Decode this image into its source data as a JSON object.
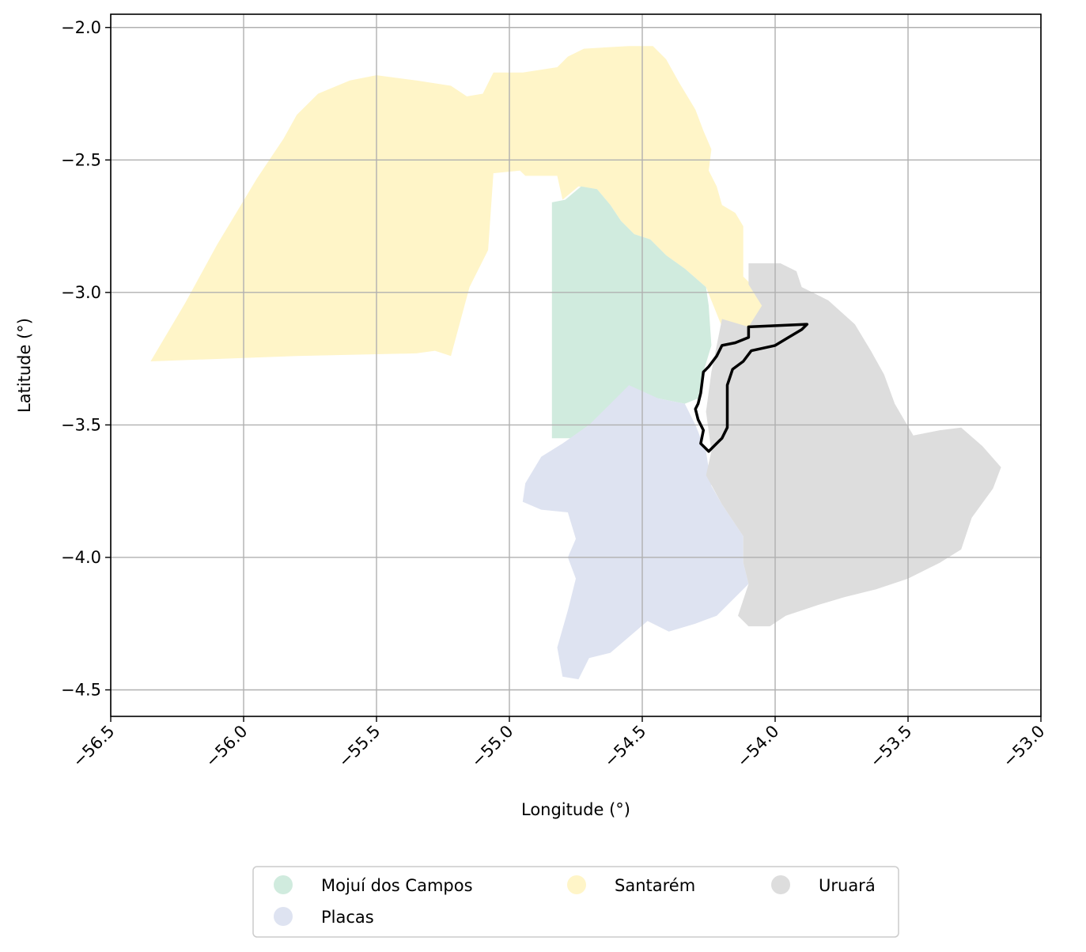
{
  "chart_data": {
    "type": "map",
    "title": "",
    "xlabel": "Longitude (°)",
    "ylabel": "Latitude (°)",
    "xlim": [
      -56.5,
      -53.0
    ],
    "ylim": [
      -4.6,
      -1.95
    ],
    "xticks": [
      -56.5,
      -56.0,
      -55.5,
      -55.0,
      -54.5,
      -54.0,
      -53.5,
      -53.0
    ],
    "xtick_labels": [
      "−56.5",
      "−56.0",
      "−55.5",
      "−55.0",
      "−54.5",
      "−54.0",
      "−53.5",
      "−53.0"
    ],
    "yticks": [
      -2.0,
      -2.5,
      -3.0,
      -3.5,
      -4.0,
      -4.5
    ],
    "ytick_labels": [
      "−2.0",
      "−2.5",
      "−3.0",
      "−3.5",
      "−4.0",
      "−4.5"
    ],
    "grid": true,
    "legend_placement": "bottom-center, outside plot, 3 columns",
    "regions": [
      {
        "name": "Santarém",
        "color": "#fff5c8",
        "polygons": [
          [
            [
              -56.35,
              -3.26
            ],
            [
              -55.8,
              -3.24
            ],
            [
              -55.35,
              -3.23
            ],
            [
              -55.28,
              -3.22
            ],
            [
              -55.22,
              -3.24
            ],
            [
              -55.15,
              -2.98
            ],
            [
              -55.08,
              -2.84
            ],
            [
              -55.06,
              -2.55
            ],
            [
              -54.96,
              -2.54
            ],
            [
              -54.94,
              -2.56
            ],
            [
              -54.82,
              -2.56
            ],
            [
              -54.8,
              -2.65
            ],
            [
              -54.74,
              -2.6
            ],
            [
              -54.67,
              -2.61
            ],
            [
              -54.62,
              -2.67
            ],
            [
              -54.58,
              -2.73
            ],
            [
              -54.53,
              -2.78
            ],
            [
              -54.47,
              -2.8
            ],
            [
              -54.41,
              -2.86
            ],
            [
              -54.34,
              -2.91
            ],
            [
              -54.26,
              -2.98
            ],
            [
              -54.22,
              -3.08
            ],
            [
              -54.2,
              -3.13
            ],
            [
              -54.17,
              -3.23
            ],
            [
              -54.08,
              -3.19
            ],
            [
              -54.05,
              -3.15
            ],
            [
              -54.05,
              -3.05
            ],
            [
              -54.08,
              -2.98
            ],
            [
              -54.12,
              -2.94
            ],
            [
              -54.12,
              -2.75
            ],
            [
              -54.15,
              -2.7
            ],
            [
              -54.2,
              -2.67
            ],
            [
              -54.22,
              -2.6
            ],
            [
              -54.25,
              -2.54
            ],
            [
              -54.24,
              -2.46
            ],
            [
              -54.27,
              -2.39
            ],
            [
              -54.3,
              -2.31
            ],
            [
              -54.36,
              -2.21
            ],
            [
              -54.41,
              -2.12
            ],
            [
              -54.46,
              -2.07
            ],
            [
              -54.55,
              -2.07
            ],
            [
              -54.72,
              -2.08
            ],
            [
              -54.78,
              -2.11
            ],
            [
              -54.82,
              -2.15
            ],
            [
              -54.95,
              -2.17
            ],
            [
              -55.06,
              -2.17
            ],
            [
              -55.1,
              -2.25
            ],
            [
              -55.16,
              -2.26
            ],
            [
              -55.22,
              -2.22
            ],
            [
              -55.35,
              -2.2
            ],
            [
              -55.5,
              -2.18
            ],
            [
              -55.6,
              -2.2
            ],
            [
              -55.72,
              -2.25
            ],
            [
              -55.8,
              -2.33
            ],
            [
              -55.85,
              -2.42
            ],
            [
              -55.95,
              -2.57
            ],
            [
              -56.1,
              -2.82
            ],
            [
              -56.22,
              -3.04
            ]
          ]
        ]
      },
      {
        "name": "Mojuí dos Campos",
        "color": "#d0ebde",
        "polygons": [
          [
            [
              -54.84,
              -3.55
            ],
            [
              -54.84,
              -2.66
            ],
            [
              -54.79,
              -2.65
            ],
            [
              -54.73,
              -2.6
            ],
            [
              -54.67,
              -2.61
            ],
            [
              -54.62,
              -2.67
            ],
            [
              -54.58,
              -2.73
            ],
            [
              -54.53,
              -2.78
            ],
            [
              -54.47,
              -2.8
            ],
            [
              -54.41,
              -2.86
            ],
            [
              -54.34,
              -2.91
            ],
            [
              -54.26,
              -2.98
            ],
            [
              -54.25,
              -3.05
            ],
            [
              -54.24,
              -3.2
            ],
            [
              -54.27,
              -3.3
            ],
            [
              -54.29,
              -3.4
            ],
            [
              -54.34,
              -3.42
            ],
            [
              -54.44,
              -3.4
            ],
            [
              -54.55,
              -3.37
            ],
            [
              -54.62,
              -3.44
            ],
            [
              -54.7,
              -3.5
            ],
            [
              -54.77,
              -3.55
            ]
          ]
        ]
      },
      {
        "name": "Placas",
        "color": "#dee3f1",
        "polygons": [
          [
            [
              -54.88,
              -3.62
            ],
            [
              -54.94,
              -3.72
            ],
            [
              -54.95,
              -3.79
            ],
            [
              -54.88,
              -3.82
            ],
            [
              -54.78,
              -3.83
            ],
            [
              -54.75,
              -3.93
            ],
            [
              -54.78,
              -4.0
            ],
            [
              -54.75,
              -4.08
            ],
            [
              -54.78,
              -4.2
            ],
            [
              -54.82,
              -4.34
            ],
            [
              -54.8,
              -4.45
            ],
            [
              -54.74,
              -4.46
            ],
            [
              -54.7,
              -4.38
            ],
            [
              -54.62,
              -4.36
            ],
            [
              -54.55,
              -4.3
            ],
            [
              -54.48,
              -4.24
            ],
            [
              -54.4,
              -4.28
            ],
            [
              -54.3,
              -4.25
            ],
            [
              -54.22,
              -4.22
            ],
            [
              -54.1,
              -4.1
            ],
            [
              -54.12,
              -4.02
            ],
            [
              -54.12,
              -3.92
            ],
            [
              -54.2,
              -3.8
            ],
            [
              -54.24,
              -3.73
            ],
            [
              -54.26,
              -3.6
            ],
            [
              -54.3,
              -3.5
            ],
            [
              -54.34,
              -3.42
            ],
            [
              -54.44,
              -3.4
            ],
            [
              -54.55,
              -3.35
            ],
            [
              -54.62,
              -3.42
            ],
            [
              -54.7,
              -3.5
            ],
            [
              -54.8,
              -3.57
            ]
          ]
        ]
      },
      {
        "name": "Uruará",
        "color": "#dddddd",
        "polygons": [
          [
            [
              -54.26,
              -3.69
            ],
            [
              -54.24,
              -3.6
            ],
            [
              -54.26,
              -3.45
            ],
            [
              -54.24,
              -3.3
            ],
            [
              -54.22,
              -3.2
            ],
            [
              -54.2,
              -3.1
            ],
            [
              -54.1,
              -3.13
            ],
            [
              -54.05,
              -3.05
            ],
            [
              -54.1,
              -2.97
            ],
            [
              -54.1,
              -2.89
            ],
            [
              -53.98,
              -2.89
            ],
            [
              -53.92,
              -2.92
            ],
            [
              -53.9,
              -2.98
            ],
            [
              -53.8,
              -3.03
            ],
            [
              -53.7,
              -3.12
            ],
            [
              -53.64,
              -3.22
            ],
            [
              -53.59,
              -3.31
            ],
            [
              -53.55,
              -3.42
            ],
            [
              -53.48,
              -3.54
            ],
            [
              -53.38,
              -3.52
            ],
            [
              -53.3,
              -3.51
            ],
            [
              -53.22,
              -3.58
            ],
            [
              -53.15,
              -3.66
            ],
            [
              -53.18,
              -3.74
            ],
            [
              -53.26,
              -3.85
            ],
            [
              -53.3,
              -3.97
            ],
            [
              -53.38,
              -4.02
            ],
            [
              -53.5,
              -4.08
            ],
            [
              -53.62,
              -4.12
            ],
            [
              -53.74,
              -4.15
            ],
            [
              -53.84,
              -4.18
            ],
            [
              -53.96,
              -4.22
            ],
            [
              -54.02,
              -4.26
            ],
            [
              -54.1,
              -4.26
            ],
            [
              -54.14,
              -4.22
            ],
            [
              -54.1,
              -4.1
            ],
            [
              -54.12,
              -4.02
            ],
            [
              -54.12,
              -3.92
            ],
            [
              -54.2,
              -3.8
            ]
          ]
        ]
      }
    ],
    "outline": {
      "color": "#000000",
      "polygon": [
        [
          -53.88,
          -3.12
        ],
        [
          -54.1,
          -3.13
        ],
        [
          -54.1,
          -3.17
        ],
        [
          -54.15,
          -3.19
        ],
        [
          -54.2,
          -3.2
        ],
        [
          -54.22,
          -3.24
        ],
        [
          -54.25,
          -3.28
        ],
        [
          -54.27,
          -3.3
        ],
        [
          -54.28,
          -3.38
        ],
        [
          -54.29,
          -3.42
        ],
        [
          -54.3,
          -3.44
        ],
        [
          -54.29,
          -3.48
        ],
        [
          -54.27,
          -3.52
        ],
        [
          -54.28,
          -3.57
        ],
        [
          -54.25,
          -3.6
        ],
        [
          -54.21,
          -3.56
        ],
        [
          -54.2,
          -3.55
        ],
        [
          -54.18,
          -3.51
        ],
        [
          -54.18,
          -3.42
        ],
        [
          -54.18,
          -3.35
        ],
        [
          -54.16,
          -3.29
        ],
        [
          -54.12,
          -3.26
        ],
        [
          -54.09,
          -3.22
        ],
        [
          -54.0,
          -3.2
        ],
        [
          -53.95,
          -3.17
        ],
        [
          -53.9,
          -3.14
        ]
      ]
    },
    "legend": [
      {
        "label": "Mojuí dos Campos",
        "color": "#d0ebde"
      },
      {
        "label": "Santarém",
        "color": "#fff5c8"
      },
      {
        "label": "Uruará",
        "color": "#dddddd"
      },
      {
        "label": "Placas",
        "color": "#dee3f1"
      }
    ]
  }
}
